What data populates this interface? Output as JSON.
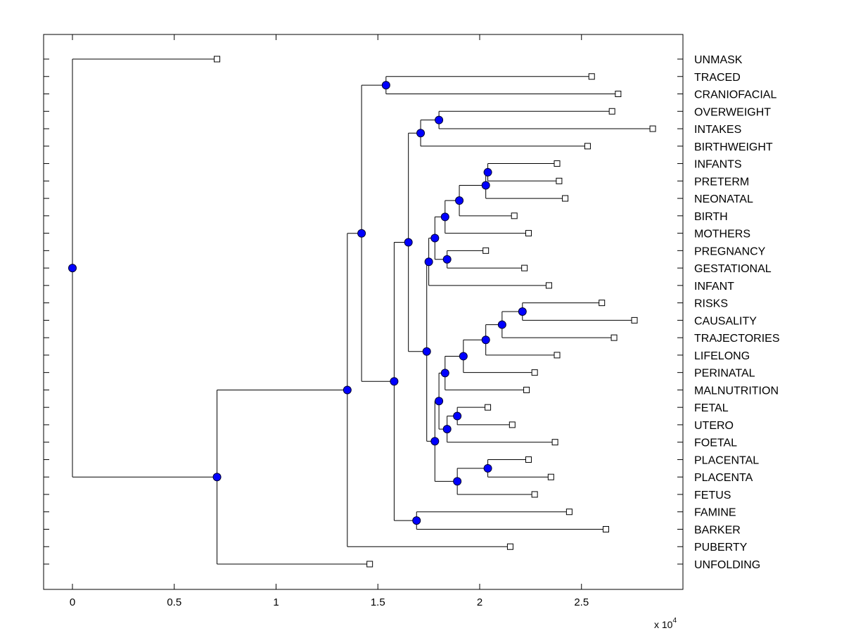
{
  "chart_data": {
    "type": "dendrogram",
    "title": "",
    "xlabel": "",
    "ylabel": "",
    "x_multiplier_label": "x 10",
    "x_multiplier_exponent": "4",
    "xlim": [
      -0.14,
      2.99
    ],
    "xticks": [
      0,
      0.5,
      1,
      1.5,
      2,
      2.5
    ],
    "xtick_labels": [
      "0",
      "0.5",
      "1",
      "1.5",
      "2",
      "2.5"
    ],
    "grid": false,
    "leaf_order_top_to_bottom": [
      "UNMASK",
      "TRACED",
      "CRANIOFACIAL",
      "OVERWEIGHT",
      "INTAKES",
      "BIRTHWEIGHT",
      "INFANTS",
      "PRETERM",
      "NEONATAL",
      "BIRTH",
      "MOTHERS",
      "PREGNANCY",
      "GESTATIONAL",
      "INFANT",
      "RISKS",
      "CAUSALITY",
      "TRAJECTORIES",
      "LIFELONG",
      "PERINATAL",
      "MALNUTRITION",
      "FETAL",
      "UTERO",
      "FOETAL",
      "PLACENTAL",
      "PLACENTA",
      "FETUS",
      "FAMINE",
      "BARKER",
      "PUBERTY",
      "UNFOLDING"
    ],
    "leaves": {
      "UNMASK": 0.71,
      "TRACED": 2.55,
      "CRANIOFACIAL": 2.68,
      "OVERWEIGHT": 2.65,
      "INTAKES": 2.85,
      "BIRTHWEIGHT": 2.53,
      "INFANTS": 2.38,
      "PRETERM": 2.39,
      "NEONATAL": 2.42,
      "BIRTH": 2.17,
      "MOTHERS": 2.24,
      "PREGNANCY": 2.03,
      "GESTATIONAL": 2.22,
      "INFANT": 2.34,
      "RISKS": 2.6,
      "CAUSALITY": 2.76,
      "TRAJECTORIES": 2.66,
      "LIFELONG": 2.38,
      "PERINATAL": 2.27,
      "MALNUTRITION": 2.23,
      "FETAL": 2.04,
      "UTERO": 2.16,
      "FOETAL": 2.37,
      "PLACENTAL": 2.24,
      "PLACENTA": 2.35,
      "FETUS": 2.27,
      "FAMINE": 2.44,
      "BARKER": 2.62,
      "PUBERTY": 2.15,
      "UNFOLDING": 1.46
    },
    "nodes": [
      {
        "id": "n_traced",
        "value": 1.54,
        "children": [
          "TRACED",
          "CRANIOFACIAL"
        ]
      },
      {
        "id": "n_ow",
        "value": 1.8,
        "children": [
          "OVERWEIGHT",
          "INTAKES"
        ]
      },
      {
        "id": "n_bw",
        "value": 1.71,
        "children": [
          "n_ow",
          "BIRTHWEIGHT"
        ]
      },
      {
        "id": "n_inf",
        "value": 2.04,
        "children": [
          "INFANTS",
          "PRETERM"
        ]
      },
      {
        "id": "n_neo",
        "value": 2.03,
        "children": [
          "n_inf",
          "NEONATAL"
        ]
      },
      {
        "id": "n_birth",
        "value": 1.9,
        "children": [
          "n_neo",
          "BIRTH"
        ]
      },
      {
        "id": "n_mot",
        "value": 1.83,
        "children": [
          "n_birth",
          "MOTHERS"
        ]
      },
      {
        "id": "n_preg",
        "value": 1.84,
        "children": [
          "PREGNANCY",
          "GESTATIONAL"
        ]
      },
      {
        "id": "n_mp",
        "value": 1.78,
        "children": [
          "n_mot",
          "n_preg"
        ]
      },
      {
        "id": "n_infant",
        "value": 1.75,
        "children": [
          "n_mp",
          "INFANT"
        ]
      },
      {
        "id": "n_risks",
        "value": 2.21,
        "children": [
          "RISKS",
          "CAUSALITY"
        ]
      },
      {
        "id": "n_traj",
        "value": 2.11,
        "children": [
          "n_risks",
          "TRAJECTORIES"
        ]
      },
      {
        "id": "n_life",
        "value": 2.03,
        "children": [
          "n_traj",
          "LIFELONG"
        ]
      },
      {
        "id": "n_peri",
        "value": 1.92,
        "children": [
          "n_life",
          "PERINATAL"
        ]
      },
      {
        "id": "n_mal",
        "value": 1.83,
        "children": [
          "n_peri",
          "MALNUTRITION"
        ]
      },
      {
        "id": "n_fetal",
        "value": 1.89,
        "children": [
          "FETAL",
          "UTERO"
        ]
      },
      {
        "id": "n_foetal",
        "value": 1.84,
        "children": [
          "n_fetal",
          "FOETAL"
        ]
      },
      {
        "id": "n_mf",
        "value": 1.8,
        "children": [
          "n_mal",
          "n_foetal"
        ]
      },
      {
        "id": "n_plac",
        "value": 2.04,
        "children": [
          "PLACENTAL",
          "PLACENTA"
        ]
      },
      {
        "id": "n_fetus",
        "value": 1.89,
        "children": [
          "n_plac",
          "FETUS"
        ]
      },
      {
        "id": "n_mfp",
        "value": 1.78,
        "children": [
          "n_mf",
          "n_fetus"
        ]
      },
      {
        "id": "n_big",
        "value": 1.74,
        "children": [
          "n_infant",
          "n_mfp"
        ]
      },
      {
        "id": "n_bwbig",
        "value": 1.65,
        "children": [
          "n_bw",
          "n_big"
        ]
      },
      {
        "id": "n_famine",
        "value": 1.69,
        "children": [
          "FAMINE",
          "BARKER"
        ]
      },
      {
        "id": "n_mid",
        "value": 1.58,
        "children": [
          "n_bwbig",
          "n_famine"
        ]
      },
      {
        "id": "n_upper",
        "value": 1.42,
        "children": [
          "n_traced",
          "n_mid"
        ]
      },
      {
        "id": "n_pub",
        "value": 1.35,
        "children": [
          "n_upper",
          "PUBERTY"
        ]
      },
      {
        "id": "n_unf",
        "value": 0.71,
        "children": [
          "n_pub",
          "UNFOLDING"
        ]
      },
      {
        "id": "root",
        "value": 0.0,
        "children": [
          "UNMASK",
          "n_unf"
        ]
      }
    ],
    "colors": {
      "node_fill": "#0000ff",
      "leaf_fill": "#ffffff",
      "line": "#000000"
    }
  }
}
